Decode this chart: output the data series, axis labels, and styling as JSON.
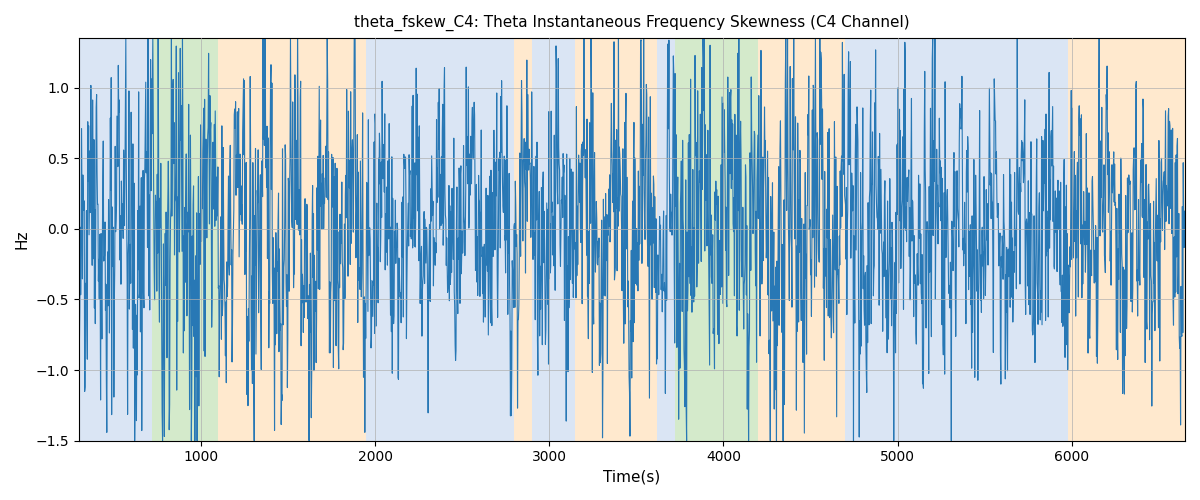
{
  "title": "theta_fskew_C4: Theta Instantaneous Frequency Skewness (C4 Channel)",
  "xlabel": "Time(s)",
  "ylabel": "Hz",
  "ylim": [
    -1.5,
    1.35
  ],
  "xlim": [
    300,
    6650
  ],
  "line_color": "#2878b5",
  "line_width": 0.8,
  "bg_color": "#ffffff",
  "grid_color": "#b0b0b0",
  "regions": [
    {
      "start": 300,
      "end": 720,
      "color": "#aec6e8",
      "alpha": 0.45
    },
    {
      "start": 720,
      "end": 1100,
      "color": "#90c878",
      "alpha": 0.38
    },
    {
      "start": 1100,
      "end": 1950,
      "color": "#ffd59e",
      "alpha": 0.5
    },
    {
      "start": 1950,
      "end": 2800,
      "color": "#aec6e8",
      "alpha": 0.45
    },
    {
      "start": 2800,
      "end": 2900,
      "color": "#ffd59e",
      "alpha": 0.5
    },
    {
      "start": 2900,
      "end": 3150,
      "color": "#aec6e8",
      "alpha": 0.45
    },
    {
      "start": 3150,
      "end": 3620,
      "color": "#ffd59e",
      "alpha": 0.5
    },
    {
      "start": 3620,
      "end": 3720,
      "color": "#aec6e8",
      "alpha": 0.45
    },
    {
      "start": 3720,
      "end": 4200,
      "color": "#90c878",
      "alpha": 0.38
    },
    {
      "start": 4200,
      "end": 4700,
      "color": "#ffd59e",
      "alpha": 0.5
    },
    {
      "start": 4700,
      "end": 5800,
      "color": "#aec6e8",
      "alpha": 0.45
    },
    {
      "start": 5800,
      "end": 5980,
      "color": "#aec6e8",
      "alpha": 0.45
    },
    {
      "start": 5980,
      "end": 6650,
      "color": "#ffd59e",
      "alpha": 0.5
    }
  ],
  "seed": 42,
  "n_points": 2500,
  "t_start": 300,
  "t_end": 6650
}
